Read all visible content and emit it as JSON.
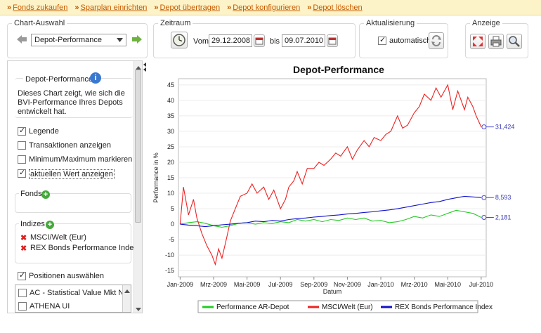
{
  "toolbar": {
    "links": [
      "Fonds zukaufen",
      "Sparplan einrichten",
      "Depot übertragen",
      "Depot konfigurieren",
      "Depot löschen"
    ],
    "accent": "#c65a00"
  },
  "chart_selection": {
    "title": "Chart-Auswahl",
    "selected": "Depot-Performance"
  },
  "period": {
    "title": "Zeitraum",
    "from_label": "Vom",
    "from": "29.12.2008",
    "to_label": "bis",
    "to": "09.07.2010"
  },
  "refresh": {
    "title": "Aktualisierung",
    "auto_label": "automatisch",
    "auto_checked": true
  },
  "display": {
    "title": "Anzeige"
  },
  "sidebar": {
    "info_title": "Depot-Performance",
    "info_text_lines": [
      "Dieses Chart zeigt, wie sich die",
      "BVI-Performance Ihres Depots",
      "entwickelt hat."
    ],
    "options": [
      {
        "label": "Legende",
        "checked": true
      },
      {
        "label": "Transaktionen anzeigen",
        "checked": false
      },
      {
        "label": "Minimum/Maximum markieren",
        "checked": false
      },
      {
        "label": "aktuellen Wert anzeigen",
        "checked": true
      }
    ],
    "fonds_label": "Fonds",
    "indices_label": "Indizes",
    "indices": [
      "MSCI/Welt (Eur)",
      "REX Bonds Performance Index"
    ],
    "positions_label": "Positionen auswählen",
    "positions_checked": true,
    "positions": [
      "AC - Statistical Value Mkt Neutr",
      "ATHENA UI"
    ]
  },
  "chart_data": {
    "type": "line",
    "title": "Depot-Performance",
    "xlabel": "Datum",
    "ylabel": "Performance in %",
    "ylim": [
      -17,
      47
    ],
    "yticks": [
      -15,
      -10,
      -5,
      0,
      5,
      10,
      15,
      20,
      25,
      30,
      35,
      40,
      45
    ],
    "x_ticks": [
      "Jan-2009",
      "Mrz-2009",
      "Mai-2009",
      "Jul-2009",
      "Sep-2009",
      "Nov-2009",
      "Jan-2010",
      "Mrz-2010",
      "Mai-2010",
      "Jul-2010"
    ],
    "x_tick_pos": [
      0,
      2,
      4,
      6,
      8,
      10,
      12,
      14,
      16,
      18
    ],
    "xlim": [
      -0.1,
      18.3
    ],
    "legend_position": "bottom",
    "series": [
      {
        "name": "Performance AR-Depot",
        "color": "#22cc22",
        "x": [
          0,
          0.5,
          1,
          1.5,
          2,
          2.5,
          3,
          3.5,
          4,
          4.5,
          5,
          5.5,
          6,
          6.5,
          7,
          7.5,
          8,
          8.5,
          9,
          9.5,
          10,
          10.5,
          11,
          11.5,
          12,
          12.5,
          13,
          13.5,
          14,
          14.5,
          15,
          15.5,
          16,
          16.5,
          17,
          17.5,
          17.7,
          18
        ],
        "y": [
          0,
          0.5,
          0.8,
          0.3,
          -0.5,
          -1.0,
          -0.5,
          0.3,
          0.5,
          0,
          0.5,
          0.2,
          0.8,
          0.5,
          1.5,
          1.0,
          1.5,
          0.8,
          1.5,
          1.2,
          2.0,
          1.5,
          2.0,
          1.0,
          1.2,
          0.5,
          0.8,
          1.5,
          2.5,
          2.0,
          3.0,
          2.5,
          3.5,
          4.5,
          4.0,
          3.5,
          3.0,
          2.181
        ]
      },
      {
        "name": "MSCI/Welt (Eur)",
        "color": "#ee2222",
        "x": [
          0,
          0.2,
          0.5,
          0.8,
          1,
          1.3,
          1.6,
          1.9,
          2.1,
          2.3,
          2.5,
          2.8,
          3,
          3.3,
          3.6,
          4,
          4.3,
          4.6,
          5,
          5.3,
          5.6,
          6,
          6.3,
          6.5,
          6.8,
          7,
          7.3,
          7.6,
          8,
          8.3,
          8.6,
          9,
          9.3,
          9.6,
          10,
          10.3,
          10.6,
          11,
          11.3,
          11.6,
          12,
          12.3,
          12.6,
          13,
          13.3,
          13.6,
          14,
          14.3,
          14.6,
          15,
          15.3,
          15.6,
          16,
          16.3,
          16.6,
          17,
          17.2,
          17.5,
          17.7,
          18
        ],
        "y": [
          0,
          12,
          3,
          8,
          2,
          -3,
          -7,
          -10,
          -13,
          -8,
          -11,
          -4,
          1,
          5,
          9,
          10,
          13,
          10,
          12,
          8,
          11,
          5,
          8,
          12,
          14,
          17,
          13,
          18,
          18,
          20,
          19,
          21,
          23,
          22,
          25,
          21,
          24,
          27,
          25,
          28,
          27,
          29,
          30,
          35,
          31,
          32,
          36,
          38,
          42,
          40,
          44,
          41,
          45,
          37,
          43,
          37,
          41,
          38,
          35,
          31.424
        ]
      },
      {
        "name": "REX Bonds Performance Index",
        "color": "#1111cc",
        "x": [
          0,
          0.5,
          1,
          1.5,
          2,
          2.5,
          3,
          3.5,
          4,
          4.5,
          5,
          5.5,
          6,
          6.5,
          7,
          7.5,
          8,
          8.5,
          9,
          9.5,
          10,
          10.5,
          11,
          11.5,
          12,
          12.5,
          13,
          13.5,
          14,
          14.5,
          15,
          15.5,
          16,
          16.5,
          17,
          17.5,
          18
        ],
        "y": [
          0,
          -0.3,
          -0.5,
          -0.8,
          -0.5,
          -0.2,
          0,
          0.3,
          0.5,
          1.0,
          0.8,
          1.2,
          1.0,
          1.5,
          1.8,
          2.0,
          2.3,
          2.5,
          2.8,
          3.0,
          3.3,
          3.5,
          3.8,
          4.0,
          4.3,
          4.6,
          5.0,
          5.5,
          6.0,
          6.5,
          7.0,
          7.3,
          8.0,
          8.5,
          9.0,
          8.8,
          8.593
        ]
      }
    ],
    "end_labels": [
      "31,424",
      "8,593",
      "2,181"
    ]
  }
}
